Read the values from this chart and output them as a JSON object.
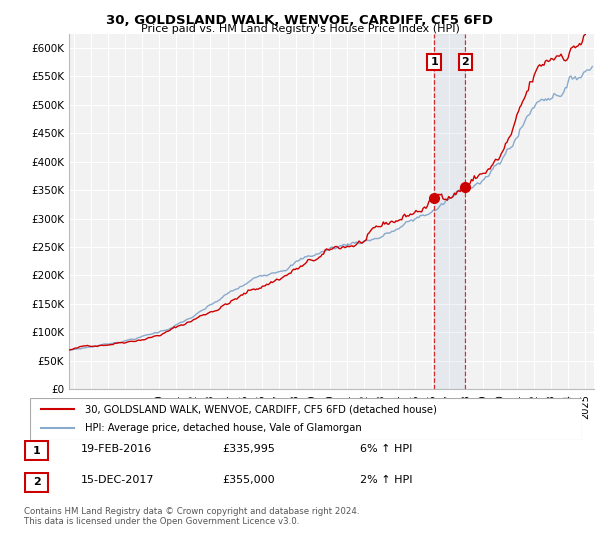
{
  "title1": "30, GOLDSLAND WALK, WENVOE, CARDIFF, CF5 6FD",
  "title2": "Price paid vs. HM Land Registry's House Price Index (HPI)",
  "yticks": [
    0,
    50000,
    100000,
    150000,
    200000,
    250000,
    300000,
    350000,
    400000,
    450000,
    500000,
    550000,
    600000
  ],
  "ylim": [
    0,
    625000
  ],
  "xlim_start": 1994.7,
  "xlim_end": 2025.5,
  "line1_color": "#cc0000",
  "line2_color": "#88aacc",
  "line1_label": "30, GOLDSLAND WALK, WENVOE, CARDIFF, CF5 6FD (detached house)",
  "line2_label": "HPI: Average price, detached house, Vale of Glamorgan",
  "transaction1_date": 2016.12,
  "transaction1_price": 335995,
  "transaction2_date": 2017.96,
  "transaction2_price": 355000,
  "footer": "Contains HM Land Registry data © Crown copyright and database right 2024.\nThis data is licensed under the Open Government Licence v3.0.",
  "background_color": "#ffffff",
  "plot_bg_color": "#f2f2f2",
  "grid_color": "#ffffff"
}
